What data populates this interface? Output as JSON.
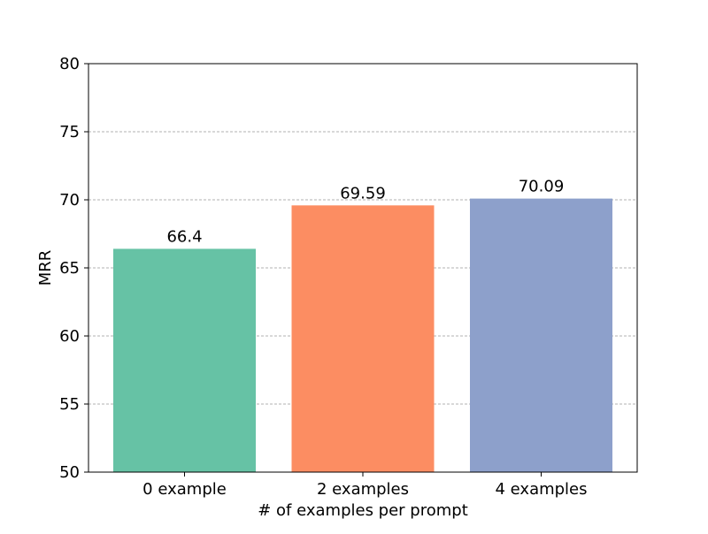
{
  "chart_data": {
    "type": "bar",
    "title": "",
    "xlabel": "# of examples per prompt",
    "ylabel": "MRR",
    "categories": [
      "0 example",
      "2 examples",
      "4 examples"
    ],
    "values": [
      66.4,
      69.59,
      70.09
    ],
    "data_labels": [
      "66.4",
      "69.59",
      "70.09"
    ],
    "colors": [
      "#66c2a5",
      "#fc8d62",
      "#8da0cb"
    ],
    "ylim": [
      50,
      80
    ],
    "yticks": [
      50,
      55,
      60,
      65,
      70,
      75,
      80
    ],
    "grid": {
      "axis": "y",
      "style": "dashed",
      "color": "#b0b0b0"
    },
    "legend": "none"
  }
}
